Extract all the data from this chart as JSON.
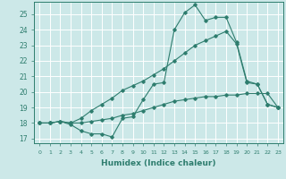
{
  "xlabel": "Humidex (Indice chaleur)",
  "bg_color": "#cce8e8",
  "line_color": "#2e7d6e",
  "grid_color": "#ffffff",
  "xlim": [
    -0.5,
    23.5
  ],
  "ylim": [
    16.7,
    25.8
  ],
  "yticks": [
    17,
    18,
    19,
    20,
    21,
    22,
    23,
    24,
    25
  ],
  "xticks": [
    0,
    1,
    2,
    3,
    4,
    5,
    6,
    7,
    8,
    9,
    10,
    11,
    12,
    13,
    14,
    15,
    16,
    17,
    18,
    19,
    20,
    21,
    22,
    23
  ],
  "line1_x": [
    0,
    1,
    2,
    3,
    4,
    5,
    6,
    7,
    8,
    9,
    10,
    11,
    12,
    13,
    14,
    15,
    16,
    17,
    18,
    19,
    20,
    21,
    22,
    23
  ],
  "line1_y": [
    18.0,
    18.0,
    18.1,
    17.9,
    17.5,
    17.3,
    17.3,
    17.1,
    18.3,
    18.4,
    19.5,
    20.5,
    20.6,
    24.0,
    25.1,
    25.6,
    24.6,
    24.8,
    24.8,
    23.2,
    20.7,
    20.5,
    19.2,
    19.0
  ],
  "line2_x": [
    0,
    1,
    2,
    3,
    4,
    5,
    6,
    7,
    8,
    9,
    10,
    11,
    12,
    13,
    14,
    15,
    16,
    17,
    18,
    19,
    20,
    21,
    22,
    23
  ],
  "line2_y": [
    18.0,
    18.0,
    18.1,
    18.0,
    18.0,
    18.1,
    18.2,
    18.3,
    18.5,
    18.6,
    18.8,
    19.0,
    19.2,
    19.4,
    19.5,
    19.6,
    19.7,
    19.7,
    19.8,
    19.8,
    19.9,
    19.9,
    19.9,
    19.0
  ],
  "line3_x": [
    0,
    1,
    2,
    3,
    4,
    5,
    6,
    7,
    8,
    9,
    10,
    11,
    12,
    13,
    14,
    15,
    16,
    17,
    18,
    19,
    20,
    21,
    22,
    23
  ],
  "line3_y": [
    18.0,
    18.0,
    18.1,
    18.0,
    18.3,
    18.8,
    19.2,
    19.6,
    20.1,
    20.4,
    20.7,
    21.1,
    21.5,
    22.0,
    22.5,
    23.0,
    23.3,
    23.6,
    23.9,
    23.1,
    20.6,
    20.5,
    19.2,
    19.0
  ]
}
